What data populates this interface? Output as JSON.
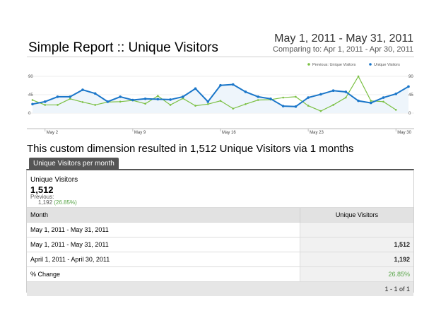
{
  "report": {
    "title": "Simple Report :: Unique Visitors",
    "date_range": "May 1, 2011 - May 31, 2011",
    "comparing": "Comparing to: Apr 1, 2011 - Apr 30, 2011"
  },
  "chart_data": {
    "type": "line",
    "legend_position": "top-right",
    "x": [
      "May 1",
      "May 2",
      "May 3",
      "May 4",
      "May 5",
      "May 6",
      "May 7",
      "May 8",
      "May 9",
      "May 10",
      "May 11",
      "May 12",
      "May 13",
      "May 14",
      "May 15",
      "May 16",
      "May 17",
      "May 18",
      "May 19",
      "May 20",
      "May 21",
      "May 22",
      "May 23",
      "May 24",
      "May 25",
      "May 26",
      "May 27",
      "May 28",
      "May 29",
      "May 30",
      "May 31"
    ],
    "x_tick_labels": [
      "May 2",
      "May 9",
      "May 16",
      "May 23",
      "May 30"
    ],
    "y_tick_labels": [
      "90",
      "45",
      "0"
    ],
    "ylim": [
      0,
      90
    ],
    "series": [
      {
        "name": "Previous: Unique Visitors",
        "color": "#7bc043",
        "values": [
          32,
          20,
          20,
          35,
          27,
          20,
          27,
          28,
          31,
          23,
          42,
          20,
          36,
          18,
          22,
          30,
          11,
          22,
          32,
          33,
          38,
          40,
          18,
          5,
          20,
          38,
          90,
          30,
          28,
          8,
          null
        ]
      },
      {
        "name": "Unique Visitors",
        "color": "#1a76c9",
        "values": [
          22,
          28,
          40,
          40,
          57,
          48,
          28,
          40,
          32,
          35,
          34,
          33,
          40,
          60,
          28,
          68,
          70,
          52,
          40,
          35,
          17,
          16,
          38,
          46,
          55,
          52,
          30,
          25,
          38,
          47,
          65
        ]
      }
    ]
  },
  "summary_text": "This custom dimension resulted in 1,512 Unique Visitors via 1 months",
  "tab_label": "Unique Visitors per month",
  "metric": {
    "name": "Unique Visitors",
    "value": "1,512",
    "previous_label": "Previous:",
    "previous_value": "1,192",
    "previous_change": "(26.85%)"
  },
  "table": {
    "headers": [
      "Month",
      "Unique Visitors"
    ],
    "rows": [
      [
        "May 1, 2011 - May 31, 2011",
        ""
      ],
      [
        "May 1, 2011 - May 31, 2011",
        "1,512"
      ],
      [
        "April 1, 2011 - April 30, 2011",
        "1,192"
      ],
      [
        "% Change",
        "26.85%"
      ]
    ],
    "pagination": "1 - 1 of 1"
  }
}
